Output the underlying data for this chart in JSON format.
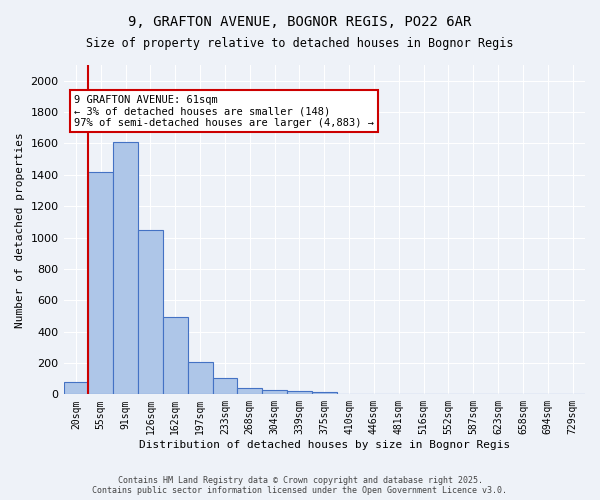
{
  "title1": "9, GRAFTON AVENUE, BOGNOR REGIS, PO22 6AR",
  "title2": "Size of property relative to detached houses in Bognor Regis",
  "xlabel": "Distribution of detached houses by size in Bognor Regis",
  "ylabel": "Number of detached properties",
  "bar_values": [
    80,
    1420,
    1610,
    1050,
    490,
    205,
    105,
    38,
    28,
    20,
    18,
    0,
    0,
    0,
    0,
    0,
    0,
    0,
    0,
    0,
    0
  ],
  "categories": [
    "20sqm",
    "55sqm",
    "91sqm",
    "126sqm",
    "162sqm",
    "197sqm",
    "233sqm",
    "268sqm",
    "304sqm",
    "339sqm",
    "375sqm",
    "410sqm",
    "446sqm",
    "481sqm",
    "516sqm",
    "552sqm",
    "587sqm",
    "623sqm",
    "658sqm",
    "694sqm",
    "729sqm"
  ],
  "bar_color": "#aec6e8",
  "bar_edge_color": "#4472c4",
  "bg_color": "#eef2f8",
  "grid_color": "#ffffff",
  "vline_x_pos": 0.5,
  "vline_color": "#cc0000",
  "annotation_text": "9 GRAFTON AVENUE: 61sqm\n← 3% of detached houses are smaller (148)\n97% of semi-detached houses are larger (4,883) →",
  "annotation_box_color": "#ffffff",
  "annotation_box_edge": "#cc0000",
  "ylim": [
    0,
    2100
  ],
  "yticks": [
    0,
    200,
    400,
    600,
    800,
    1000,
    1200,
    1400,
    1600,
    1800,
    2000
  ],
  "footer1": "Contains HM Land Registry data © Crown copyright and database right 2025.",
  "footer2": "Contains public sector information licensed under the Open Government Licence v3.0."
}
